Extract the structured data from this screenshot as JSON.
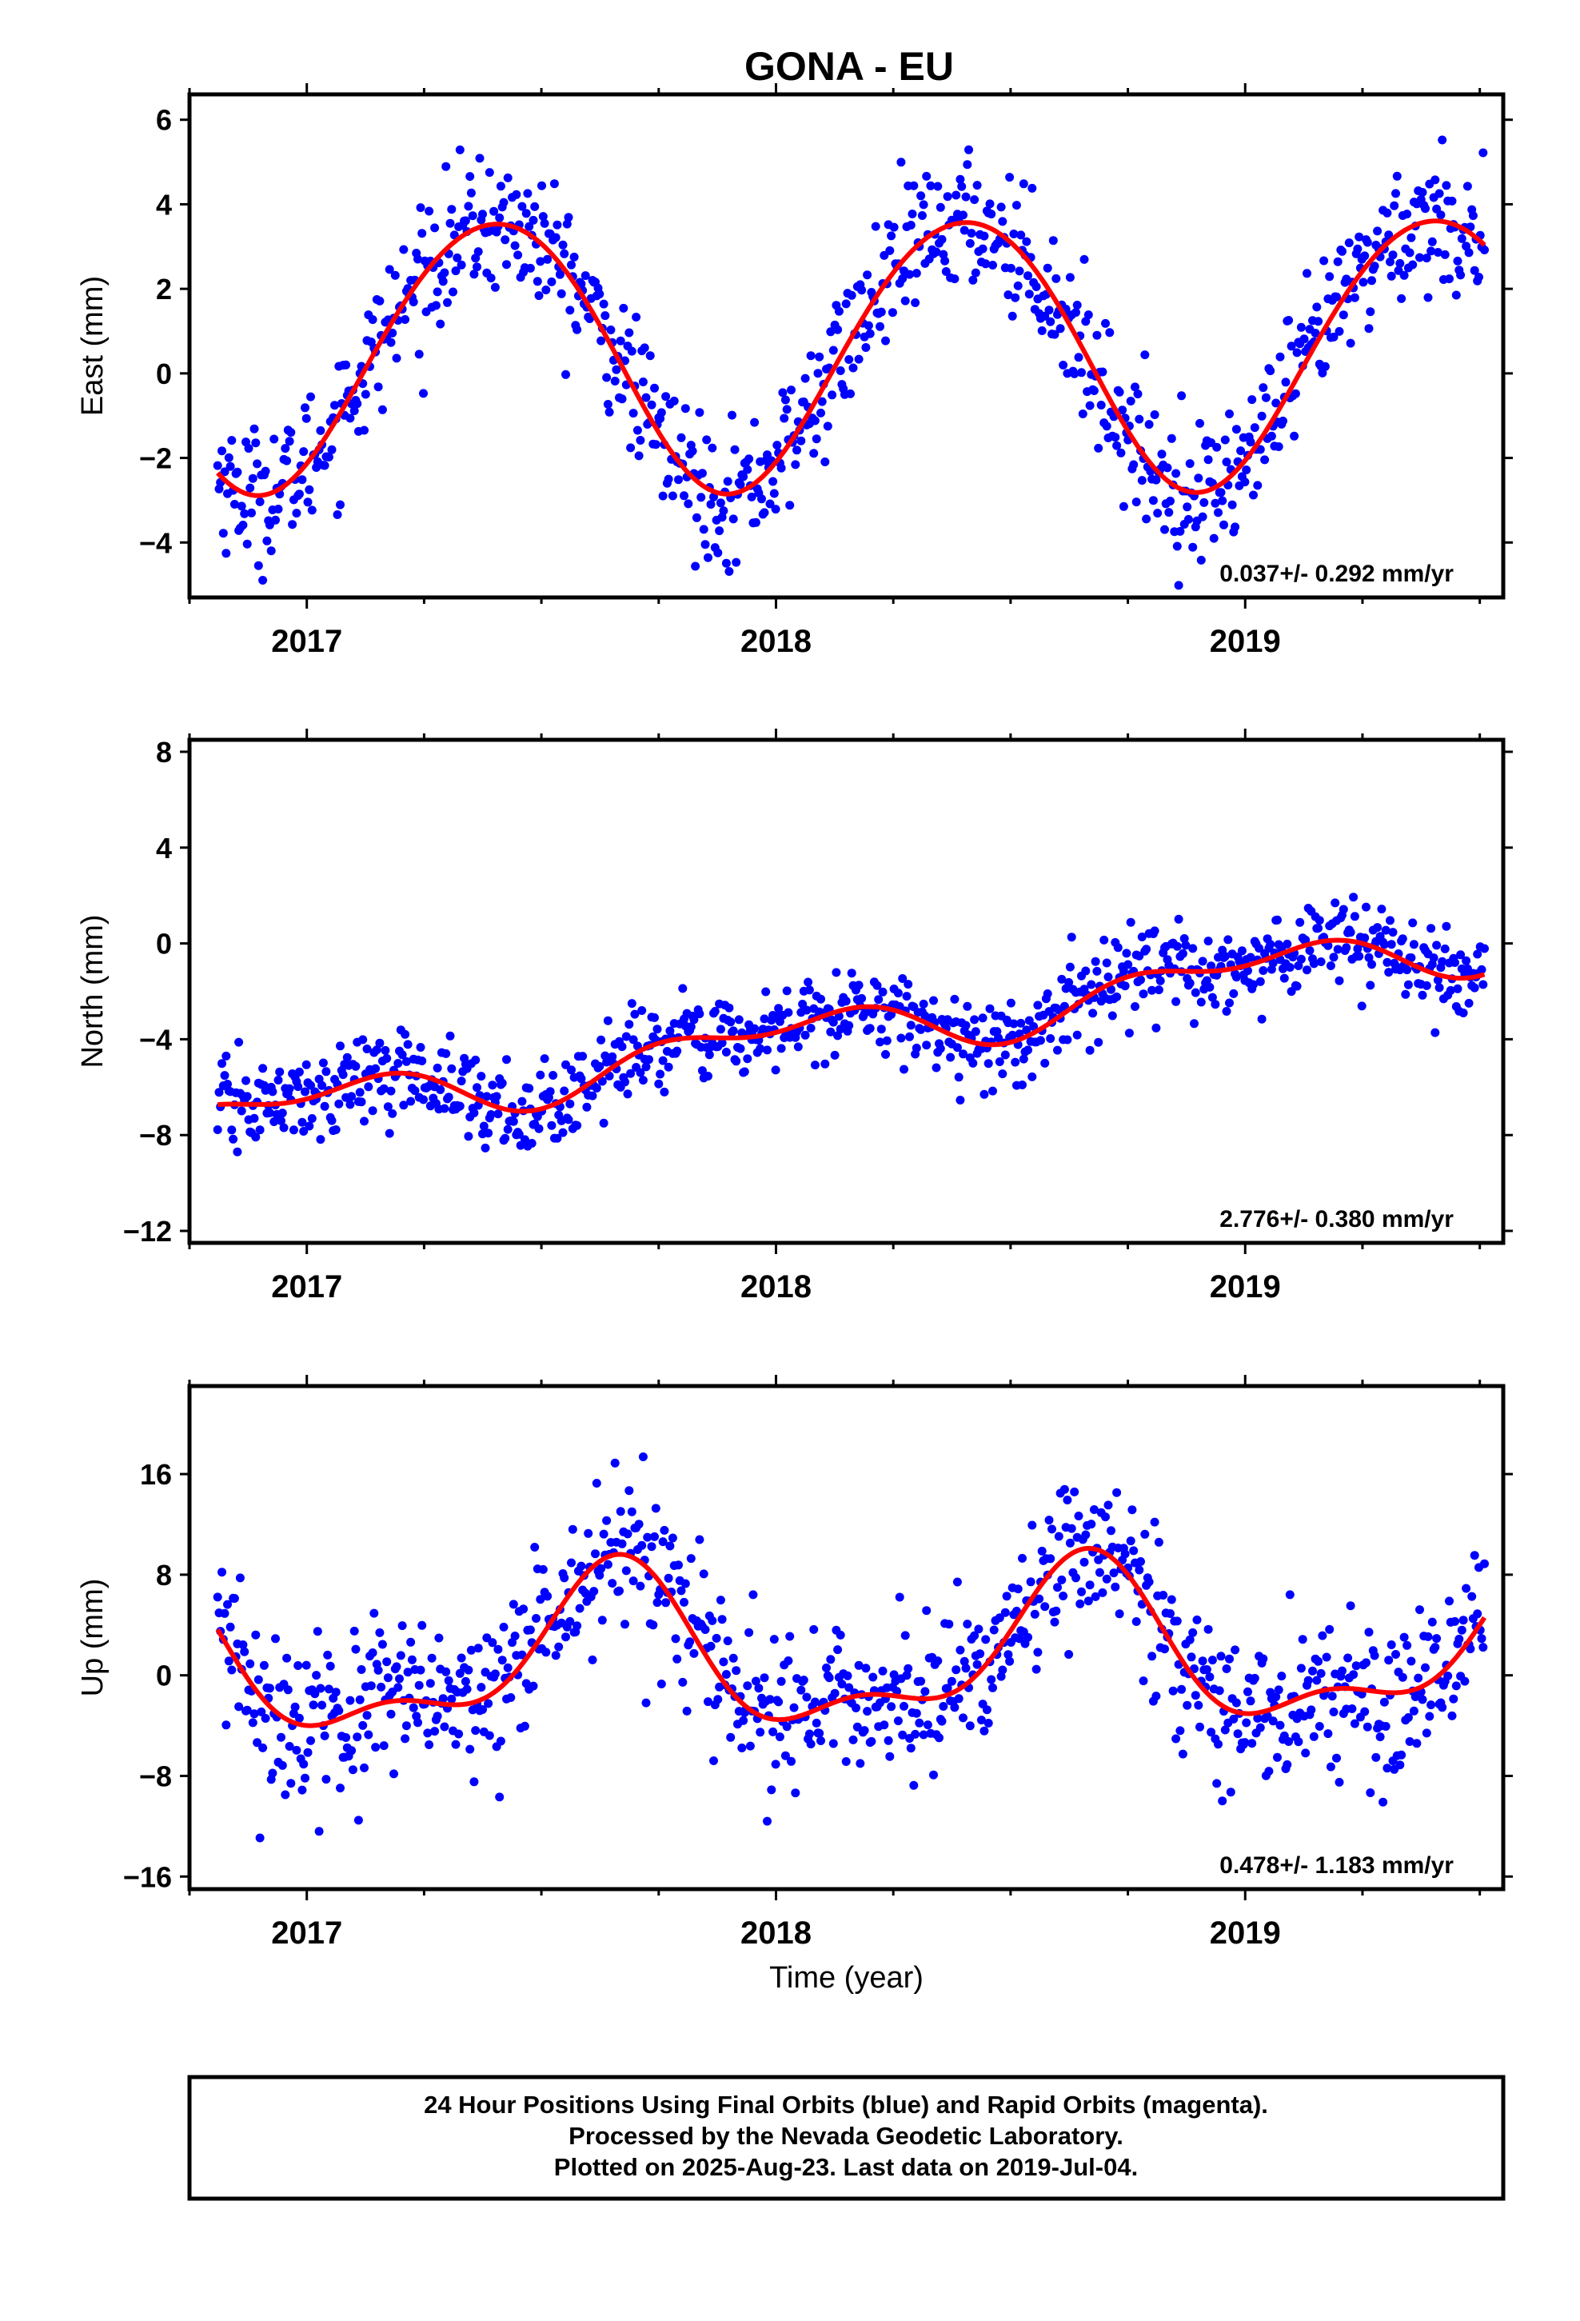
{
  "title": "GONA - EU",
  "footer": {
    "lines": [
      "24 Hour Positions Using Final Orbits (blue) and Rapid Orbits (magenta).",
      "Processed by the Nevada Geodetic Laboratory.",
      "Plotted on 2025-Aug-23. Last data on 2019-Jul-04."
    ]
  },
  "colors": {
    "points": "#0000ff",
    "fit": "#ff0000",
    "frame": "#000000"
  },
  "chart_data": [
    {
      "type": "scatter",
      "ylabel": "East (mm)",
      "xlabel": "",
      "xlim": [
        2016.75,
        2019.55
      ],
      "ylim": [
        -5.3,
        6.6
      ],
      "xticks": [
        2017,
        2018,
        2019
      ],
      "yticks": [
        -4,
        -2,
        0,
        2,
        4,
        6
      ],
      "rate_text": "0.037+/- 0.292 mm/yr",
      "series": [
        {
          "kind": "points",
          "x_start": 2016.81,
          "x_end": 2019.51,
          "seasonal": {
            "offset": 0.5,
            "amplitude": 3.2,
            "phase": 0.15,
            "amplitude2": 0.15,
            "phase2": 0.5,
            "trend": 0.037
          },
          "noise_sd": 0.8,
          "count": 900
        },
        {
          "kind": "fit",
          "name": ""
        }
      ]
    },
    {
      "type": "scatter",
      "ylabel": "North (mm)",
      "xlabel": "",
      "xlim": [
        2016.75,
        2019.55
      ],
      "ylim": [
        -12.5,
        8.5
      ],
      "xticks": [
        2017,
        2018,
        2019
      ],
      "yticks": [
        -12,
        -8,
        -4,
        0,
        4,
        8
      ],
      "rate_text": "2.776+/- 0.380 mm/yr",
      "series": [
        {
          "kind": "points",
          "x_start": 2016.81,
          "x_end": 2019.51,
          "seasonal": {
            "offset": -3.6,
            "amplitude": 0.9,
            "phase": 0.75,
            "amplitude2": 0.6,
            "phase2": 0.1,
            "trend": 2.776
          },
          "noise_sd": 0.9,
          "count": 900
        },
        {
          "kind": "fit",
          "name": ""
        }
      ]
    },
    {
      "type": "scatter",
      "ylabel": "Up (mm)",
      "xlabel": "Time (year)",
      "xlim": [
        2016.75,
        2019.55
      ],
      "ylim": [
        -17,
        23
      ],
      "xticks": [
        2017,
        2018,
        2019
      ],
      "yticks": [
        -16,
        -8,
        0,
        8,
        16
      ],
      "rate_text": "0.478+/- 1.183 mm/yr",
      "series": [
        {
          "kind": "points",
          "x_start": 2016.81,
          "x_end": 2019.51,
          "seasonal": {
            "offset": 1.5,
            "amplitude": 5.8,
            "phase": 0.4,
            "amplitude2": 2.6,
            "phase2": 0.55,
            "trend": 0.478
          },
          "noise_sd": 3.2,
          "count": 900
        },
        {
          "kind": "fit",
          "name": ""
        }
      ]
    }
  ]
}
